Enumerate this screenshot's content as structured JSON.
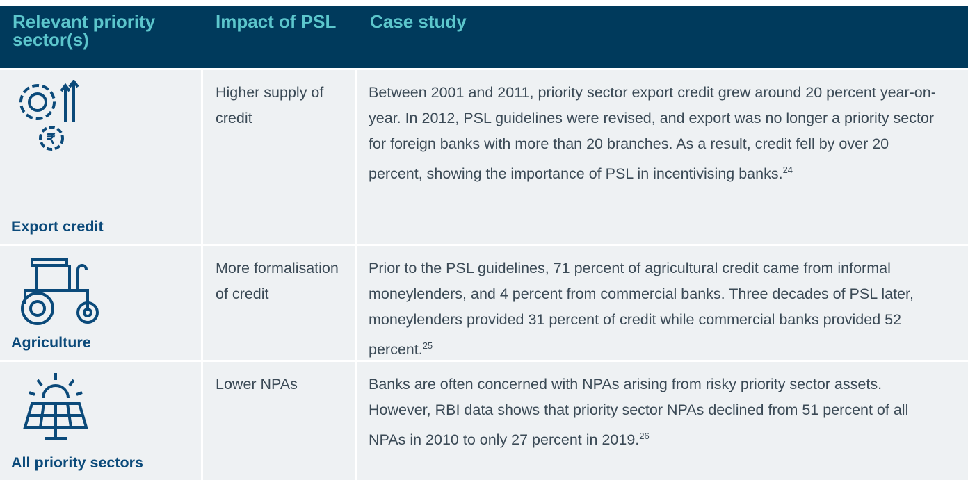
{
  "table": {
    "header": [
      "Relevant priority sector(s)",
      "Impact of PSL",
      "Case study"
    ],
    "rows": [
      {
        "sector": "Export credit",
        "impact": "Higher supply of credit",
        "case": "Between 2001 and 2011, priority sector export credit grew around 20 percent year-on-year. In 2012, PSL guidelines were revised, and export was no longer a priority sector for foreign banks with more than 20 branches. As a result, credit fell by over 20 percent, showing the importance of PSL in incentivising banks.",
        "note": "24"
      },
      {
        "sector": "Agriculture",
        "impact": "More formalisation of credit",
        "case": "Prior to the PSL guidelines, 71 percent of agricultural credit came from informal moneylenders, and 4 percent from commercial banks. Three decades of PSL later, moneylenders provided 31 percent of credit while commercial banks provided 52 percent.",
        "note": "25"
      },
      {
        "sector": "All priority sectors",
        "impact": "Lower NPAs",
        "case": "Banks are often concerned with NPAs arising from risky priority sector assets. However, RBI data shows that priority sector NPAs declined from 51 percent of all NPAs in 2010 to only 27 percent in 2019.",
        "note": "26"
      }
    ]
  }
}
